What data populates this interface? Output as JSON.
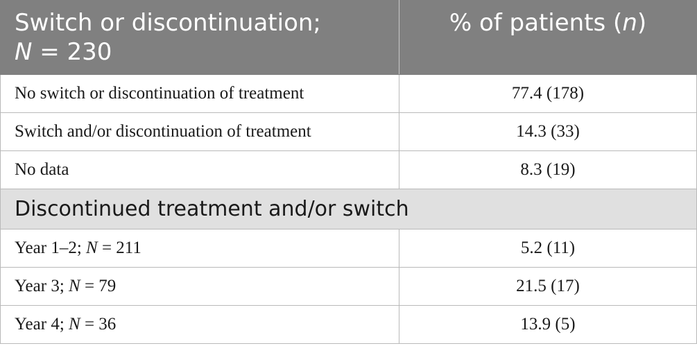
{
  "header": {
    "col1_line1": "Switch or discontinuation;",
    "col1_line2_italic": "N",
    "col1_line2_rest": " = 230",
    "col2_prefix": "% of patients (",
    "col2_italic": "n",
    "col2_suffix": ")"
  },
  "rows_top": [
    {
      "label": "No switch or discontinuation of treatment",
      "value": "77.4 (178)"
    },
    {
      "label": "Switch and/or discontinuation of treatment",
      "value": "14.3 (33)"
    },
    {
      "label": "No data",
      "value": "8.3 (19)"
    }
  ],
  "section_title": "Discontinued treatment and/or switch",
  "rows_bottom": [
    {
      "label_prefix": "Year 1–2; ",
      "label_italic": "N",
      "label_suffix": " = 211",
      "value": "5.2 (11)"
    },
    {
      "label_prefix": "Year 3; ",
      "label_italic": "N",
      "label_suffix": " = 79",
      "value": "21.5 (17)"
    },
    {
      "label_prefix": "Year 4; ",
      "label_italic": "N",
      "label_suffix": " = 36",
      "value": "13.9 (5)"
    }
  ]
}
